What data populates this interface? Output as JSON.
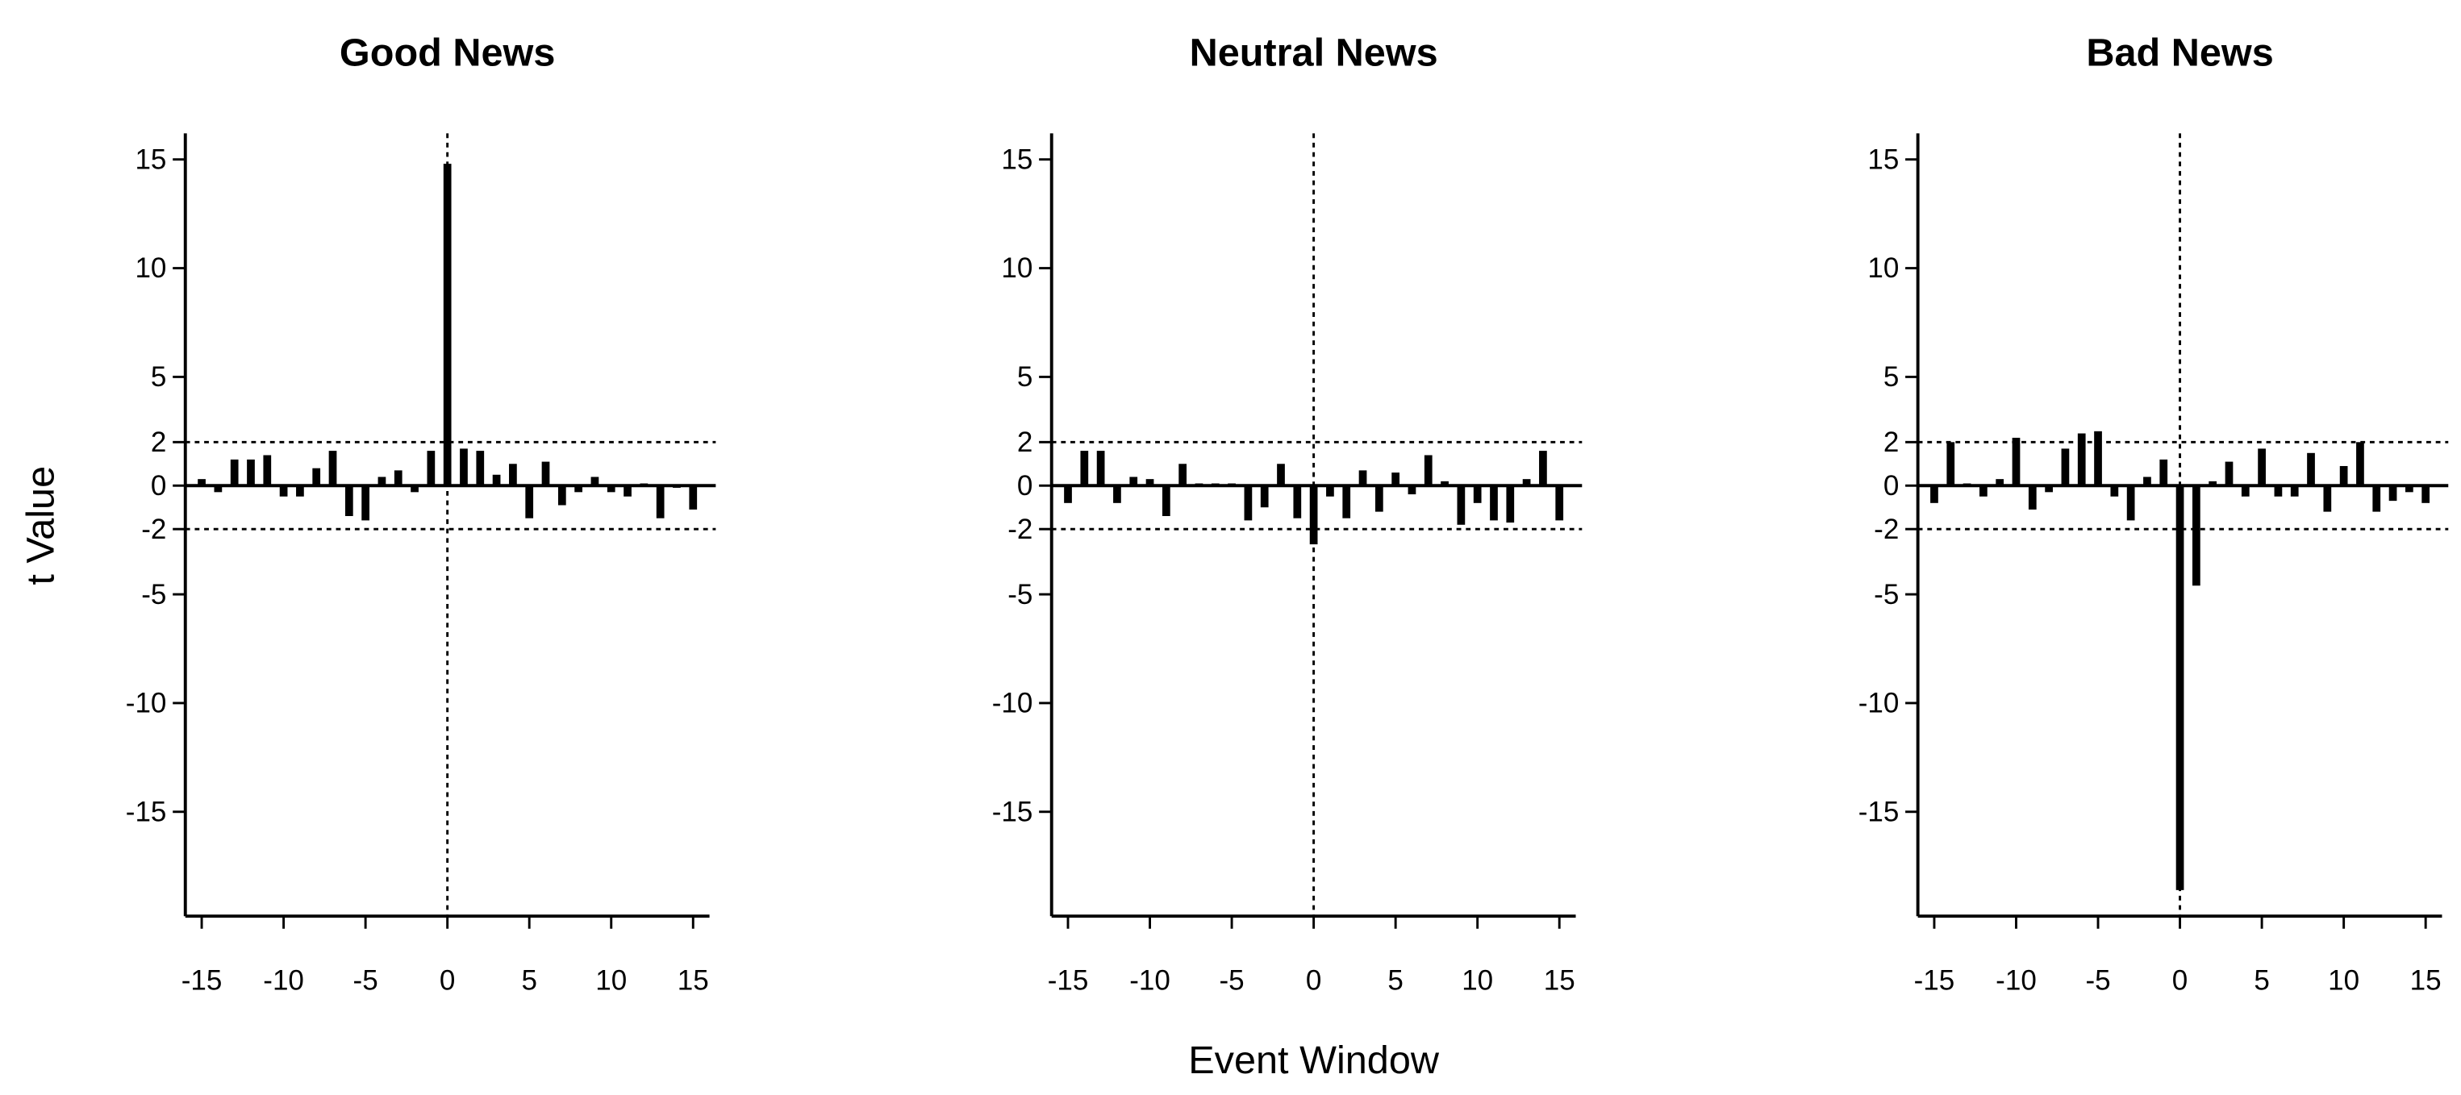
{
  "chart_data": [
    {
      "type": "bar",
      "title": "Good News",
      "ylabel": "t Value",
      "x": [
        -15,
        -14,
        -13,
        -12,
        -11,
        -10,
        -9,
        -8,
        -7,
        -6,
        -5,
        -4,
        -3,
        -2,
        -1,
        0,
        1,
        2,
        3,
        4,
        5,
        6,
        7,
        8,
        9,
        10,
        11,
        12,
        13,
        14,
        15
      ],
      "values": [
        0.3,
        -0.3,
        1.2,
        1.2,
        1.4,
        -0.5,
        -0.5,
        0.8,
        1.6,
        -1.4,
        -1.6,
        0.4,
        0.7,
        -0.3,
        1.6,
        14.8,
        1.7,
        1.6,
        0.5,
        1.0,
        -1.5,
        1.1,
        -0.9,
        -0.3,
        0.4,
        -0.3,
        -0.5,
        0.1,
        -1.5,
        -0.1,
        -1.1
      ],
      "color": "#000000",
      "xlim": [
        -16,
        16
      ],
      "ylim": [
        -19.8,
        16.2
      ],
      "xticks": [
        -15,
        -10,
        -5,
        0,
        5,
        10,
        15
      ],
      "yticks": [
        -15,
        -10,
        -5,
        -2,
        0,
        2,
        5,
        10,
        15
      ],
      "hlines": [
        -2,
        2
      ],
      "vline": 0
    },
    {
      "type": "bar",
      "title": "Neutral News",
      "xlabel": "Event Window",
      "x": [
        -15,
        -14,
        -13,
        -12,
        -11,
        -10,
        -9,
        -8,
        -7,
        -6,
        -5,
        -4,
        -3,
        -2,
        -1,
        0,
        1,
        2,
        3,
        4,
        5,
        6,
        7,
        8,
        9,
        10,
        11,
        12,
        13,
        14,
        15
      ],
      "values": [
        -0.8,
        1.6,
        1.6,
        -0.8,
        0.4,
        0.3,
        -1.4,
        1.0,
        0.1,
        0.1,
        0.1,
        -1.6,
        -1.0,
        1.0,
        -1.5,
        -2.7,
        -0.5,
        -1.5,
        0.7,
        -1.2,
        0.6,
        -0.4,
        1.4,
        0.2,
        -1.8,
        -0.8,
        -1.6,
        -1.7,
        0.3,
        1.6,
        -1.6
      ],
      "color": "#000000",
      "xlim": [
        -16,
        16
      ],
      "ylim": [
        -19.8,
        16.2
      ],
      "xticks": [
        -15,
        -10,
        -5,
        0,
        5,
        10,
        15
      ],
      "yticks": [
        -15,
        -10,
        -5,
        -2,
        0,
        2,
        5,
        10,
        15
      ],
      "hlines": [
        -2,
        2
      ],
      "vline": 0
    },
    {
      "type": "bar",
      "title": "Bad News",
      "x": [
        -15,
        -14,
        -13,
        -12,
        -11,
        -10,
        -9,
        -8,
        -7,
        -6,
        -5,
        -4,
        -3,
        -2,
        -1,
        0,
        1,
        2,
        3,
        4,
        5,
        6,
        7,
        8,
        9,
        10,
        11,
        12,
        13,
        14,
        15
      ],
      "values": [
        -0.8,
        2.0,
        0.1,
        -0.5,
        0.3,
        2.2,
        -1.1,
        -0.3,
        1.7,
        2.4,
        2.5,
        -0.5,
        -1.6,
        0.4,
        1.2,
        -18.6,
        -4.6,
        0.2,
        1.1,
        -0.5,
        1.7,
        -0.5,
        -0.5,
        1.5,
        -1.2,
        0.9,
        2.0,
        -1.2,
        -0.7,
        -0.3,
        -0.8
      ],
      "color": "#000000",
      "xlim": [
        -16,
        16
      ],
      "ylim": [
        -19.8,
        16.2
      ],
      "xticks": [
        -15,
        -10,
        -5,
        0,
        5,
        10,
        15
      ],
      "yticks": [
        -15,
        -10,
        -5,
        -2,
        0,
        2,
        5,
        10,
        15
      ],
      "hlines": [
        -2,
        2
      ],
      "vline": 0
    }
  ]
}
